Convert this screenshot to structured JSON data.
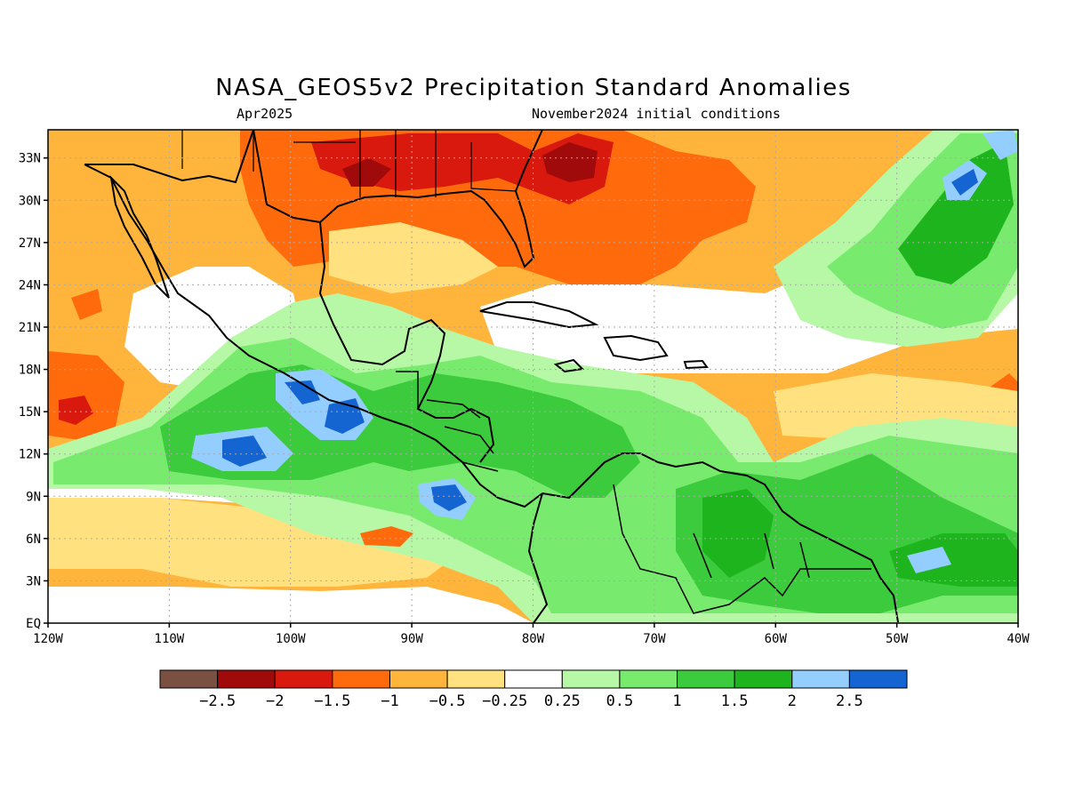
{
  "title": "NASA_GEOS5v2 Precipitation Standard Anomalies",
  "subtitle_left": "Apr2025",
  "subtitle_right": "November2024 initial conditions",
  "map": {
    "lon_range": [
      -120,
      -40
    ],
    "lat_range": [
      0,
      35
    ],
    "lat_labels": [
      "EQ",
      "3N",
      "6N",
      "9N",
      "12N",
      "15N",
      "18N",
      "21N",
      "24N",
      "27N",
      "30N",
      "33N"
    ],
    "lon_labels": [
      "120W",
      "110W",
      "100W",
      "90W",
      "80W",
      "70W",
      "60W",
      "50W",
      "40W"
    ],
    "gridlines": "dotted"
  },
  "colorbar": {
    "colors": [
      "#7a5043",
      "#a00a0a",
      "#d9190d",
      "#ff6a0d",
      "#ffb43c",
      "#ffe27f",
      "#ffffff",
      "#b7f8a6",
      "#78eb6e",
      "#3ccb3c",
      "#1eb41e",
      "#93ceff",
      "#1464d2"
    ],
    "labels": [
      "-2.5",
      "-2",
      "-1.5",
      "-1",
      "-0.5",
      "-0.25",
      "0.25",
      "0.5",
      "1",
      "1.5",
      "2",
      "2.5"
    ]
  },
  "anomaly_regions": [
    {
      "level": -2,
      "color": "#a00a0a",
      "region": "southeastern United States"
    },
    {
      "level": -1,
      "color": "#ff6a0d",
      "region": "Gulf of Mexico and western Atlantic"
    },
    {
      "level": 1.5,
      "color": "#3ccb3c",
      "region": "Central America and northern South America"
    },
    {
      "level": 2.5,
      "color": "#1464d2",
      "region": "eastern Pacific off southern Mexico"
    }
  ]
}
